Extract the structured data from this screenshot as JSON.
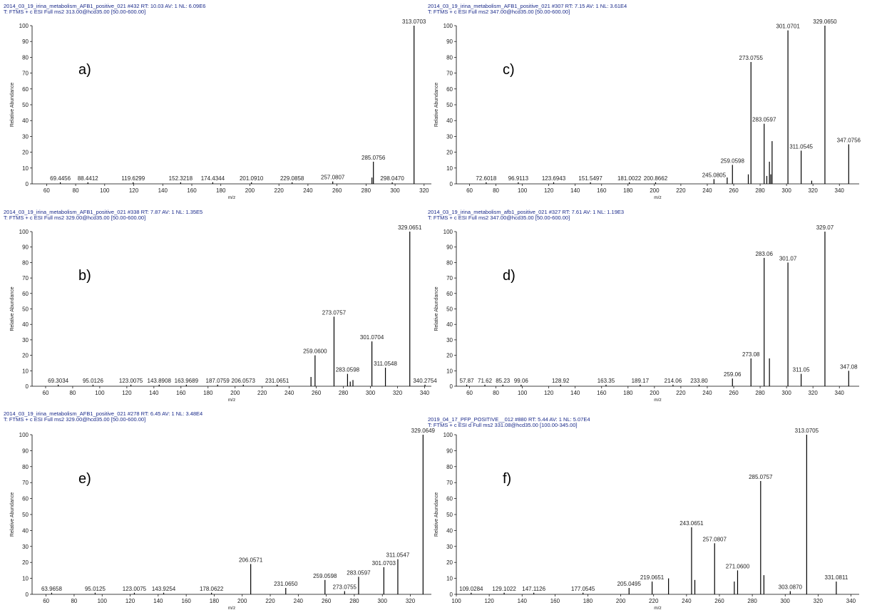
{
  "chart_data": [
    {
      "type": "bar",
      "panel_label": "a)",
      "header": "2014_03_19_irina_metabolism_AFB1_positive_021 #432  RT: 10.03  AV: 1  NL: 6.09E6",
      "scan_filter": "T: FTMS + c ESI Full ms2 313.00@hcd35.00 [50.00-600.00]",
      "xlabel": "m/z",
      "ylabel": "Relative Abundance",
      "color": "#000000",
      "x": [
        69.4456,
        88.4412,
        119.6299,
        152.3218,
        174.4344,
        201.091,
        229.0858,
        257.0807,
        284.07,
        285.0756,
        298.047,
        313.0703
      ],
      "peak_labels": [
        "69.4456",
        "88.4412",
        "119.6299",
        "152.3218",
        "174.4344",
        "201.0910",
        "229.0858",
        "257.0807",
        null,
        "285.0756",
        "298.0470",
        "313.0703"
      ],
      "values": [
        1,
        1,
        1,
        1,
        1,
        1,
        1,
        1.5,
        4,
        14,
        1,
        100
      ],
      "xlim": [
        50,
        325
      ],
      "xticks": [
        60,
        80,
        100,
        120,
        140,
        160,
        180,
        200,
        220,
        240,
        260,
        280,
        300,
        320
      ],
      "ylim": [
        0,
        100
      ],
      "yticks": [
        0,
        10,
        20,
        30,
        40,
        50,
        60,
        70,
        80,
        90,
        100
      ]
    },
    {
      "type": "bar",
      "panel_label": "c)",
      "header": "2014_03_19_irina_metabolism_AFB1_positive_021 #307  RT: 7.15  AV: 1  NL: 3.61E4",
      "scan_filter": "T: FTMS + c ESI Full ms2 347.00@hcd35.00 [50.00-600.00]",
      "xlabel": "m/z",
      "ylabel": "Relative Abundance",
      "color": "#000000",
      "x": [
        72.6018,
        96.9113,
        123.6943,
        151.5497,
        181.0022,
        200.8662,
        245.0805,
        255.07,
        259.0598,
        271.06,
        273.0755,
        283.0597,
        285.07,
        287.06,
        288.06,
        289.07,
        301.0701,
        311.0545,
        319.05,
        329.065,
        347.0756
      ],
      "peak_labels": [
        "72.6018",
        "96.9113",
        "123.6943",
        "151.5497",
        "181.0022",
        "200.8662",
        "245.0805",
        null,
        "259.0598",
        null,
        "273.0755",
        "283.0597",
        null,
        null,
        null,
        null,
        "301.0701",
        "311.0545",
        null,
        "329.0650",
        "347.0756"
      ],
      "values": [
        1,
        1,
        1,
        1,
        1,
        1,
        3,
        4,
        12,
        6,
        77,
        38,
        5,
        14,
        6,
        27,
        97,
        21,
        2,
        100,
        25
      ],
      "xlim": [
        50,
        355
      ],
      "xticks": [
        60,
        80,
        100,
        120,
        140,
        160,
        180,
        200,
        220,
        240,
        260,
        280,
        300,
        320,
        340
      ],
      "ylim": [
        0,
        100
      ],
      "yticks": [
        0,
        10,
        20,
        30,
        40,
        50,
        60,
        70,
        80,
        90,
        100
      ]
    },
    {
      "type": "bar",
      "panel_label": "b)",
      "header": "2014_03_19_irina_metabolism_AFB1_positive_021 #338  RT: 7.87  AV: 1  NL: 1.35E5",
      "scan_filter": "T: FTMS + c ESI Full ms2 329.00@hcd35.00 [50.00-600.00]",
      "xlabel": "m/z",
      "ylabel": "Relative Abundance",
      "color": "#000000",
      "x": [
        69.3034,
        95.0126,
        123.0075,
        143.8908,
        163.9689,
        187.0759,
        206.0573,
        231.0651,
        256.06,
        259.06,
        273.0757,
        283.0598,
        285.06,
        287.06,
        301.0704,
        311.0548,
        329.0651,
        340.2754
      ],
      "peak_labels": [
        "69.3034",
        "95.0126",
        "123.0075",
        "143.8908",
        "163.9689",
        "187.0759",
        "206.0573",
        "231.0651",
        null,
        "259.0600",
        "273.0757",
        "283.0598",
        null,
        null,
        "301.0704",
        "311.0548",
        "329.0651",
        "340.2754"
      ],
      "values": [
        1,
        1,
        1,
        1,
        1,
        1,
        1,
        1,
        6,
        20,
        45,
        8,
        3,
        4,
        29,
        12,
        100,
        1
      ],
      "xlim": [
        50,
        345
      ],
      "xticks": [
        60,
        80,
        100,
        120,
        140,
        160,
        180,
        200,
        220,
        240,
        260,
        280,
        300,
        320,
        340
      ],
      "ylim": [
        0,
        100
      ],
      "yticks": [
        0,
        10,
        20,
        30,
        40,
        50,
        60,
        70,
        80,
        90,
        100
      ]
    },
    {
      "type": "bar",
      "panel_label": "d)",
      "header": "2014_03_19_irina_metabolism_afb1_positive_021 #327  RT: 7.61  AV: 1  NL: 1.19E3",
      "scan_filter": "T: FTMS + c ESI Full ms2 347.00@hcd35.00 [50.00-600.00]",
      "xlabel": "m/z",
      "ylabel": "Relative Abundance",
      "color": "#000000",
      "x": [
        57.87,
        71.62,
        85.23,
        99.06,
        128.92,
        163.35,
        189.17,
        214.06,
        233.8,
        259.06,
        273.08,
        283.06,
        287.06,
        301.07,
        311.05,
        329.07,
        347.08
      ],
      "peak_labels": [
        "57.87",
        "71.62",
        "85.23",
        "99.06",
        "128.92",
        "163.35",
        "189.17",
        "214.06",
        "233.80",
        "259.06",
        "273.08",
        "283.06",
        null,
        "301.07",
        "311.05",
        "329.07",
        "347.08"
      ],
      "values": [
        1,
        1,
        1,
        1,
        1,
        1,
        1,
        1,
        1,
        5,
        18,
        83,
        18,
        80,
        8,
        100,
        10
      ],
      "xlim": [
        50,
        355
      ],
      "xticks": [
        60,
        80,
        100,
        120,
        140,
        160,
        180,
        200,
        220,
        240,
        260,
        280,
        300,
        320,
        340
      ],
      "ylim": [
        0,
        100
      ],
      "yticks": [
        0,
        10,
        20,
        30,
        40,
        50,
        60,
        70,
        80,
        90,
        100
      ]
    },
    {
      "type": "bar",
      "panel_label": "e)",
      "header": "2014_03_19_irina_metabolism_AFB1_positive_021 #278  RT: 6.45  AV: 1  NL: 3.48E4",
      "scan_filter": "T: FTMS + c ESI Full ms2 329.00@hcd35.00 [50.00-600.00]",
      "xlabel": "m/z",
      "ylabel": "Relative Abundance",
      "color": "#000000",
      "x": [
        63.9658,
        95.0125,
        123.0075,
        143.9254,
        178.0622,
        206.0571,
        231.065,
        259.0598,
        273.0755,
        283.0597,
        301.0703,
        311.0547,
        329.0649
      ],
      "peak_labels": [
        "63.9658",
        "95.0125",
        "123.0075",
        "143.9254",
        "178.0622",
        "206.0571",
        "231.0650",
        "259.0598",
        "273.0755",
        "283.0597",
        "301.0703",
        "311.0547",
        "329.0649"
      ],
      "values": [
        1,
        1,
        1,
        1,
        1,
        19,
        4,
        9,
        2,
        11,
        17,
        22,
        100
      ],
      "xlim": [
        50,
        335
      ],
      "xticks": [
        60,
        80,
        100,
        120,
        140,
        160,
        180,
        200,
        220,
        240,
        260,
        280,
        300,
        320
      ],
      "ylim": [
        0,
        100
      ],
      "yticks": [
        0,
        10,
        20,
        30,
        40,
        50,
        60,
        70,
        80,
        90,
        100
      ]
    },
    {
      "type": "bar",
      "panel_label": "f)",
      "header": "2019_04_17_PFP_POSITIVE__012 #880  RT: 5.44  AV: 1  NL: 5.07E4",
      "scan_filter": "T: FTMS + c ESI d Full ms2 331.08@hcd35.00 [100.00-345.00]",
      "xlabel": "m/z",
      "ylabel": "Relative Abundance",
      "color": "#000000",
      "x": [
        109.0284,
        129.1022,
        147.1126,
        177.0545,
        205.0495,
        219.0651,
        229.06,
        243.0651,
        245.06,
        257.0807,
        269.06,
        271.06,
        285.0757,
        287.07,
        303.087,
        313.0705,
        331.0811
      ],
      "peak_labels": [
        "109.0284",
        "129.1022",
        "147.1126",
        "177.0545",
        "205.0495",
        "219.0651",
        null,
        "243.0651",
        null,
        "257.0807",
        null,
        "271.0600",
        "285.0757",
        null,
        "303.0870",
        "313.0705",
        "331.0811"
      ],
      "values": [
        1,
        1,
        1,
        1,
        4,
        8,
        10,
        42,
        9,
        32,
        8,
        15,
        71,
        12,
        2,
        100,
        8
      ],
      "xlim": [
        100,
        345
      ],
      "xticks": [
        100,
        120,
        140,
        160,
        180,
        200,
        220,
        240,
        260,
        280,
        300,
        320,
        340
      ],
      "ylim": [
        0,
        100
      ],
      "yticks": [
        0,
        10,
        20,
        30,
        40,
        50,
        60,
        70,
        80,
        90,
        100
      ]
    }
  ]
}
